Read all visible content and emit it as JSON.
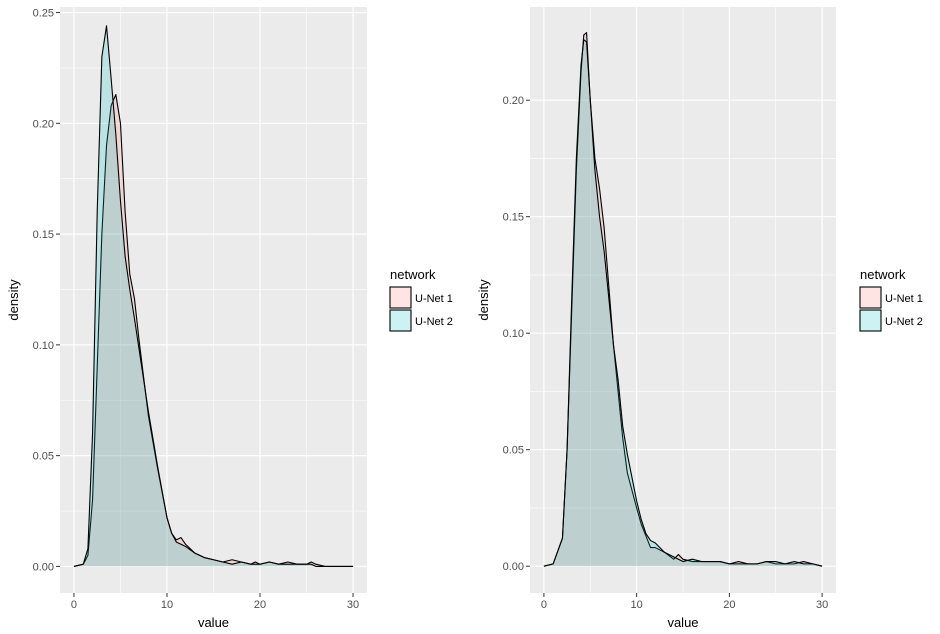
{
  "colors": {
    "panel_bg": "#EBEBEB",
    "grid_major": "#FFFFFF",
    "tick": "#333333",
    "tick_label": "#4D4D4D",
    "outline": "#000000",
    "u_net_1_fill": "#F8766D",
    "u_net_2_fill": "#00BFC4",
    "fill_opacity": 0.2
  },
  "chart_data": [
    {
      "type": "area",
      "xlabel": "value",
      "ylabel": "density",
      "xlim": [
        -1.5,
        31.5
      ],
      "ylim": [
        -0.012,
        0.2525
      ],
      "xticks": [
        0,
        10,
        20,
        30
      ],
      "xtick_labels": [
        "0",
        "10",
        "20",
        "30"
      ],
      "yticks": [
        0,
        0.05,
        0.1,
        0.15,
        0.2,
        0.25
      ],
      "ytick_labels": [
        "0.00",
        "0.05",
        "0.10",
        "0.15",
        "0.20",
        "0.25"
      ],
      "grid": true,
      "legend": {
        "title": "network",
        "placement": "right"
      },
      "series": [
        {
          "name": "U-Net 1",
          "x": [
            0,
            1,
            1.5,
            2,
            2.5,
            3,
            3.5,
            4,
            4.5,
            5,
            5.5,
            6,
            6.5,
            7,
            8,
            9,
            10,
            10.5,
            11,
            11.5,
            12,
            13,
            14,
            15,
            16,
            17,
            18,
            19,
            19.5,
            20,
            21,
            22,
            23,
            24,
            25,
            25.5,
            26,
            27,
            28,
            29,
            30
          ],
          "y": [
            0,
            0.001,
            0.005,
            0.03,
            0.09,
            0.15,
            0.19,
            0.208,
            0.213,
            0.2,
            0.16,
            0.132,
            0.121,
            0.102,
            0.068,
            0.044,
            0.022,
            0.015,
            0.012,
            0.013,
            0.01,
            0.006,
            0.004,
            0.003,
            0.002,
            0.003,
            0.002,
            0.001,
            0.002,
            0.001,
            0.002,
            0.001,
            0.002,
            0.001,
            0.001,
            0.002,
            0.001,
            0,
            0,
            0,
            0
          ]
        },
        {
          "name": "U-Net 2",
          "x": [
            0,
            1,
            1.5,
            2,
            2.5,
            3,
            3.5,
            4,
            4.5,
            5,
            5.5,
            6,
            6.5,
            7,
            8,
            9,
            10,
            10.5,
            11,
            11.5,
            12,
            13,
            14,
            15,
            16,
            17,
            18,
            19,
            19.5,
            20,
            21,
            22,
            23,
            24,
            25,
            25.5,
            26,
            27,
            28,
            29,
            30
          ],
          "y": [
            0,
            0.001,
            0.008,
            0.06,
            0.16,
            0.23,
            0.244,
            0.22,
            0.195,
            0.165,
            0.14,
            0.125,
            0.112,
            0.098,
            0.07,
            0.045,
            0.022,
            0.015,
            0.011,
            0.01,
            0.009,
            0.006,
            0.004,
            0.003,
            0.002,
            0.001,
            0.002,
            0.001,
            0.001,
            0.001,
            0.002,
            0.001,
            0.001,
            0.001,
            0.001,
            0.001,
            0,
            0,
            0,
            0,
            0
          ]
        }
      ]
    },
    {
      "type": "area",
      "xlabel": "value",
      "ylabel": "density",
      "xlim": [
        -1.5,
        31.5
      ],
      "ylim": [
        -0.0115,
        0.24
      ],
      "xticks": [
        0,
        10,
        20,
        30
      ],
      "xtick_labels": [
        "0",
        "10",
        "20",
        "30"
      ],
      "yticks": [
        0,
        0.05,
        0.1,
        0.15,
        0.2
      ],
      "ytick_labels": [
        "0.00",
        "0.05",
        "0.10",
        "0.15",
        "0.20"
      ],
      "grid": true,
      "legend": {
        "title": "network",
        "placement": "right"
      },
      "series": [
        {
          "name": "U-Net 1",
          "x": [
            0,
            1,
            2,
            2.5,
            3,
            3.5,
            4,
            4.3,
            4.6,
            5,
            5.5,
            6,
            6.5,
            7,
            7.5,
            8,
            8.5,
            9,
            10,
            10.5,
            11,
            11.5,
            12,
            13,
            14,
            14.5,
            15,
            16,
            17,
            18,
            19,
            20,
            21,
            22,
            23,
            24,
            25,
            26,
            27,
            28,
            29,
            30
          ],
          "y": [
            0,
            0.001,
            0.012,
            0.05,
            0.11,
            0.17,
            0.212,
            0.228,
            0.229,
            0.2,
            0.175,
            0.162,
            0.145,
            0.12,
            0.095,
            0.075,
            0.055,
            0.04,
            0.025,
            0.018,
            0.013,
            0.008,
            0.008,
            0.006,
            0.003,
            0.005,
            0.003,
            0.002,
            0.002,
            0.002,
            0.002,
            0.001,
            0.002,
            0.001,
            0.001,
            0.002,
            0.001,
            0.001,
            0.001,
            0.002,
            0.001,
            0
          ]
        },
        {
          "name": "U-Net 2",
          "x": [
            0,
            1,
            2,
            2.5,
            3,
            3.5,
            4,
            4.3,
            4.6,
            5,
            5.5,
            6,
            6.5,
            7,
            7.5,
            8,
            8.5,
            9,
            10,
            10.5,
            11,
            11.5,
            12,
            13,
            14,
            14.5,
            15,
            16,
            17,
            18,
            19,
            20,
            21,
            22,
            23,
            24,
            25,
            26,
            27,
            28,
            29,
            30
          ],
          "y": [
            0,
            0.001,
            0.012,
            0.05,
            0.115,
            0.175,
            0.215,
            0.226,
            0.225,
            0.2,
            0.17,
            0.15,
            0.135,
            0.115,
            0.095,
            0.08,
            0.06,
            0.048,
            0.028,
            0.02,
            0.014,
            0.011,
            0.01,
            0.006,
            0.004,
            0.003,
            0.002,
            0.003,
            0.002,
            0.002,
            0.002,
            0.001,
            0.001,
            0.001,
            0.001,
            0.002,
            0.002,
            0.001,
            0.002,
            0.001,
            0.001,
            0
          ]
        }
      ]
    }
  ]
}
